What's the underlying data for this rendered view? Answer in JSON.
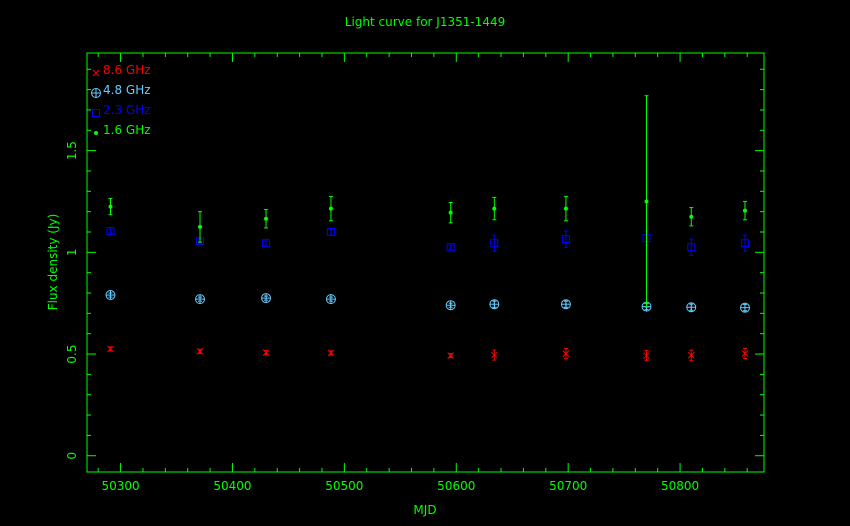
{
  "chart_data": {
    "type": "scatter",
    "title": "Light curve for J1351-1449",
    "xlabel": "MJD",
    "ylabel": "Flux density (Jy)",
    "xlim": [
      50270,
      50875
    ],
    "ylim": [
      -0.08,
      1.98
    ],
    "x_ticks": [
      50300,
      50400,
      50500,
      50600,
      50700,
      50800
    ],
    "y_ticks": [
      0,
      0.5,
      1,
      1.5
    ],
    "y_tick_labels": [
      "0",
      "0.5",
      "1",
      "1.5"
    ],
    "grid": false,
    "legend_position": "top-left",
    "axis_color": "#00ff00",
    "series": [
      {
        "name": "8.6 GHz",
        "marker": "x",
        "color": "#ff0000",
        "x": [
          50291,
          50371,
          50430,
          50488,
          50595,
          50634,
          50698,
          50770,
          50810,
          50858
        ],
        "y": [
          0.525,
          0.513,
          0.507,
          0.505,
          0.492,
          0.495,
          0.502,
          0.492,
          0.494,
          0.503
        ],
        "err": [
          0.01,
          0.01,
          0.01,
          0.01,
          0.01,
          0.025,
          0.025,
          0.025,
          0.025,
          0.025
        ]
      },
      {
        "name": "4.8 GHz",
        "marker": "circle-plus",
        "color": "#66ccff",
        "x": [
          50291,
          50371,
          50430,
          50488,
          50595,
          50634,
          50698,
          50770,
          50810,
          50858
        ],
        "y": [
          0.79,
          0.77,
          0.775,
          0.77,
          0.74,
          0.745,
          0.745,
          0.733,
          0.73,
          0.728
        ],
        "err": [
          0.01,
          0.01,
          0.01,
          0.01,
          0.01,
          0.015,
          0.015,
          0.015,
          0.015,
          0.015
        ]
      },
      {
        "name": "2.3 GHz",
        "marker": "square",
        "color": "#0000ff",
        "x": [
          50291,
          50371,
          50430,
          50488,
          50595,
          50634,
          50698,
          50770,
          50810,
          50858
        ],
        "y": [
          1.105,
          1.055,
          1.045,
          1.1,
          1.025,
          1.045,
          1.065,
          1.07,
          1.025,
          1.045
        ],
        "err": [
          0.01,
          0.01,
          0.01,
          0.015,
          0.01,
          0.04,
          0.04,
          0.035,
          0.04,
          0.04
        ]
      },
      {
        "name": "1.6 GHz",
        "marker": "dot",
        "color": "#00ff00",
        "x": [
          50291,
          50371,
          50430,
          50488,
          50595,
          50634,
          50698,
          50770,
          50810,
          50858
        ],
        "y": [
          1.225,
          1.125,
          1.165,
          1.215,
          1.195,
          1.215,
          1.215,
          1.25,
          1.175,
          1.205
        ],
        "err": [
          0.04,
          0.075,
          0.045,
          0.06,
          0.05,
          0.055,
          0.06,
          0.52,
          0.045,
          0.045
        ]
      }
    ]
  }
}
